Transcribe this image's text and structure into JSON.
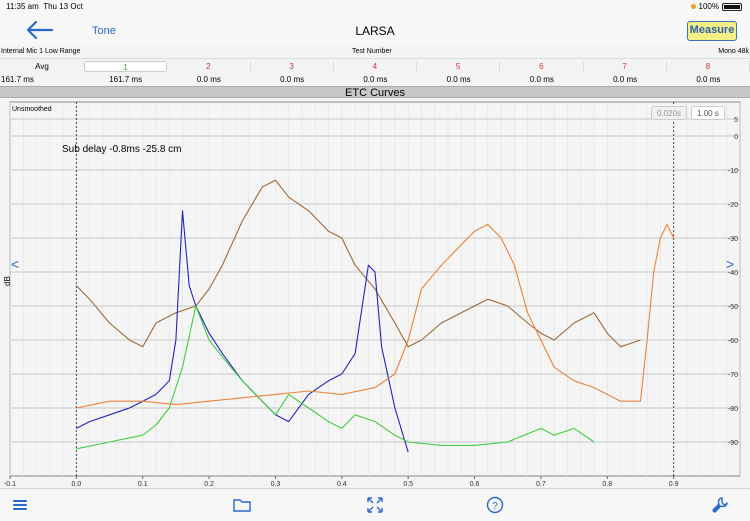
{
  "status": {
    "time": "11:35 am",
    "date": "Thu 13 Oct",
    "battery": "100%"
  },
  "nav": {
    "back": "back-arrow-icon",
    "tone": "Tone",
    "title": "LARSA",
    "measure": "Measure"
  },
  "info": {
    "input": "Internal Mic 1 Low Range",
    "test": "Test Number",
    "mode": "Mono 48k"
  },
  "channels": {
    "avg": "Avg",
    "tabs": [
      "1",
      "2",
      "3",
      "4",
      "5",
      "6",
      "7",
      "8"
    ],
    "active_color": "#2fb01c",
    "inactive_color": "#d33333",
    "avg_value": "161.7 ms",
    "values": [
      "161.7 ms",
      "0.0 ms",
      "0.0 ms",
      "0.0 ms",
      "0.0 ms",
      "0.0 ms",
      "0.0 ms",
      "0.0 ms"
    ]
  },
  "chart_title": "ETC Curves",
  "plot": {
    "unsmoothed": "Unsmoothed",
    "annotation": "Sub delay -0.8ms -25.8 cm",
    "time_buttons": [
      "0.020s",
      "1.00 s"
    ],
    "prev": "<",
    "next": ">",
    "ylabel": "dB"
  },
  "toolbar": {
    "icons": [
      "list-icon",
      "folder-icon",
      "fullscreen-icon",
      "help-icon",
      "wrench-icon"
    ]
  },
  "chart_data": {
    "type": "line",
    "title": "ETC Curves",
    "xlabel": "",
    "ylabel": "dB",
    "xlim": [
      -0.1,
      1.0
    ],
    "ylim": [
      -100,
      10
    ],
    "x_ticks": [
      "-0.1",
      "0.0",
      "0.1",
      "0.2",
      "0.3",
      "0.4",
      "0.5",
      "0.6",
      "0.7",
      "0.8",
      "0.9"
    ],
    "y_ticks": [
      "5",
      "0",
      "-10",
      "-20",
      "-30",
      "-40",
      "-50",
      "-60",
      "-70",
      "-80",
      "-90"
    ],
    "grid": true,
    "markers": [
      0.0,
      0.9
    ],
    "series": [
      {
        "color": "#9c6a3c",
        "x": [
          0.0,
          0.02,
          0.05,
          0.08,
          0.1,
          0.12,
          0.15,
          0.18,
          0.2,
          0.22,
          0.25,
          0.28,
          0.3,
          0.32,
          0.35,
          0.38,
          0.4,
          0.42,
          0.45,
          0.48,
          0.5,
          0.52,
          0.55,
          0.58,
          0.6,
          0.62,
          0.65,
          0.68,
          0.7,
          0.72,
          0.75,
          0.78,
          0.8,
          0.82,
          0.85
        ],
        "y": [
          -44,
          -48,
          -55,
          -60,
          -62,
          -55,
          -52,
          -50,
          -45,
          -38,
          -25,
          -15,
          -13,
          -18,
          -22,
          -28,
          -30,
          -38,
          -45,
          -55,
          -62,
          -60,
          -55,
          -52,
          -50,
          -48,
          -50,
          -55,
          -58,
          -60,
          -55,
          -52,
          -58,
          -62,
          -60
        ]
      },
      {
        "color": "#2424b4",
        "x": [
          0.0,
          0.02,
          0.05,
          0.08,
          0.1,
          0.12,
          0.14,
          0.15,
          0.16,
          0.17,
          0.18,
          0.2,
          0.22,
          0.25,
          0.28,
          0.3,
          0.32,
          0.35,
          0.38,
          0.4,
          0.42,
          0.44,
          0.45,
          0.46,
          0.48,
          0.5
        ],
        "y": [
          -86,
          -84,
          -82,
          -80,
          -78,
          -76,
          -72,
          -60,
          -22,
          -44,
          -50,
          -58,
          -64,
          -72,
          -78,
          -82,
          -84,
          -76,
          -72,
          -70,
          -64,
          -38,
          -40,
          -62,
          -80,
          -93
        ]
      },
      {
        "color": "#44cc44",
        "x": [
          0.0,
          0.05,
          0.1,
          0.12,
          0.14,
          0.16,
          0.18,
          0.2,
          0.22,
          0.25,
          0.28,
          0.3,
          0.32,
          0.35,
          0.38,
          0.4,
          0.42,
          0.45,
          0.48,
          0.5,
          0.55,
          0.6,
          0.65,
          0.7,
          0.72,
          0.75,
          0.78
        ],
        "y": [
          -92,
          -90,
          -88,
          -85,
          -80,
          -68,
          -50,
          -60,
          -65,
          -72,
          -78,
          -82,
          -76,
          -80,
          -84,
          -86,
          -82,
          -84,
          -88,
          -90,
          -91,
          -91,
          -90,
          -86,
          -88,
          -86,
          -90
        ]
      },
      {
        "color": "#e9833c",
        "x": [
          0.0,
          0.05,
          0.1,
          0.15,
          0.2,
          0.25,
          0.3,
          0.35,
          0.4,
          0.45,
          0.48,
          0.5,
          0.52,
          0.55,
          0.58,
          0.6,
          0.62,
          0.64,
          0.66,
          0.68,
          0.7,
          0.72,
          0.75,
          0.78,
          0.8,
          0.82,
          0.85,
          0.86,
          0.87,
          0.88,
          0.89,
          0.9
        ],
        "y": [
          -80,
          -78,
          -78,
          -79,
          -78,
          -77,
          -76,
          -75,
          -76,
          -74,
          -70,
          -60,
          -45,
          -38,
          -32,
          -28,
          -26,
          -30,
          -38,
          -52,
          -60,
          -68,
          -72,
          -74,
          -76,
          -78,
          -78,
          -60,
          -40,
          -30,
          -26,
          -30
        ]
      }
    ]
  }
}
